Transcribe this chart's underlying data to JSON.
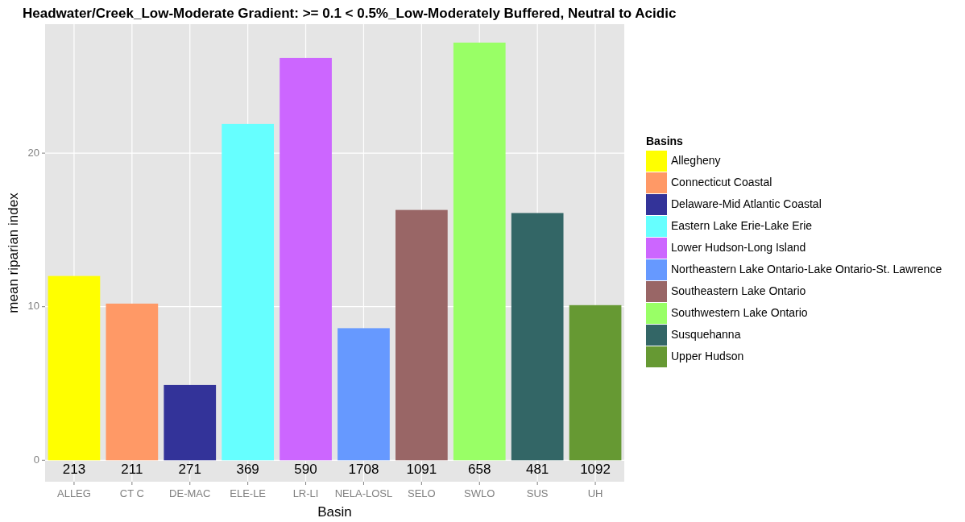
{
  "chart_data": {
    "type": "bar",
    "title": "Headwater/Creek_Low-Moderate Gradient: >= 0.1 < 0.5%_Low-Moderately Buffered, Neutral to Acidic",
    "xlabel": "Basin",
    "ylabel": "mean riparian index",
    "legend_title": "Basins",
    "legend": "right",
    "grid": true,
    "categories": [
      "ALLEG",
      "CT C",
      "DE-MAC",
      "ELE-LE",
      "LR-LI",
      "NELA-LOSL",
      "SELO",
      "SWLO",
      "SUS",
      "UH"
    ],
    "ylim": [
      -1.4,
      28.4
    ],
    "yticks": [
      0,
      10,
      20
    ],
    "series": [
      {
        "name": "Allegheny",
        "color": "#ffff00",
        "values": [
          12.0,
          null,
          null,
          null,
          null,
          null,
          null,
          null,
          null,
          null
        ]
      },
      {
        "name": "Connecticut Coastal",
        "color": "#ff9966",
        "values": [
          null,
          10.2,
          null,
          null,
          null,
          null,
          null,
          null,
          null,
          null
        ]
      },
      {
        "name": "Delaware-Mid Atlantic Coastal",
        "color": "#333399",
        "values": [
          null,
          null,
          4.9,
          null,
          null,
          null,
          null,
          null,
          null,
          null
        ]
      },
      {
        "name": "Eastern Lake Erie-Lake Erie",
        "color": "#66ffff",
        "values": [
          null,
          null,
          null,
          21.9,
          null,
          null,
          null,
          null,
          null,
          null
        ]
      },
      {
        "name": "Lower Hudson-Long Island",
        "color": "#cc66ff",
        "values": [
          null,
          null,
          null,
          null,
          26.2,
          null,
          null,
          null,
          null,
          null
        ]
      },
      {
        "name": "Northeastern Lake Ontario-Lake Ontario-St. Lawrence",
        "color": "#6699ff",
        "values": [
          null,
          null,
          null,
          null,
          null,
          8.6,
          null,
          null,
          null,
          null
        ]
      },
      {
        "name": "Southeastern Lake Ontario",
        "color": "#996666",
        "values": [
          null,
          null,
          null,
          null,
          null,
          null,
          16.3,
          null,
          null,
          null
        ]
      },
      {
        "name": "Southwestern Lake Ontario",
        "color": "#99ff66",
        "values": [
          null,
          null,
          null,
          null,
          null,
          null,
          null,
          27.2,
          null,
          null
        ]
      },
      {
        "name": "Susquehanna",
        "color": "#336666",
        "values": [
          null,
          null,
          null,
          null,
          null,
          null,
          null,
          null,
          16.1,
          null
        ]
      },
      {
        "name": "Upper Hudson",
        "color": "#669933",
        "values": [
          null,
          null,
          null,
          null,
          null,
          null,
          null,
          null,
          null,
          10.1
        ]
      }
    ],
    "annotations": [
      "213",
      "211",
      "271",
      "369",
      "590",
      "1708",
      "1091",
      "658",
      "481",
      "1092"
    ]
  }
}
